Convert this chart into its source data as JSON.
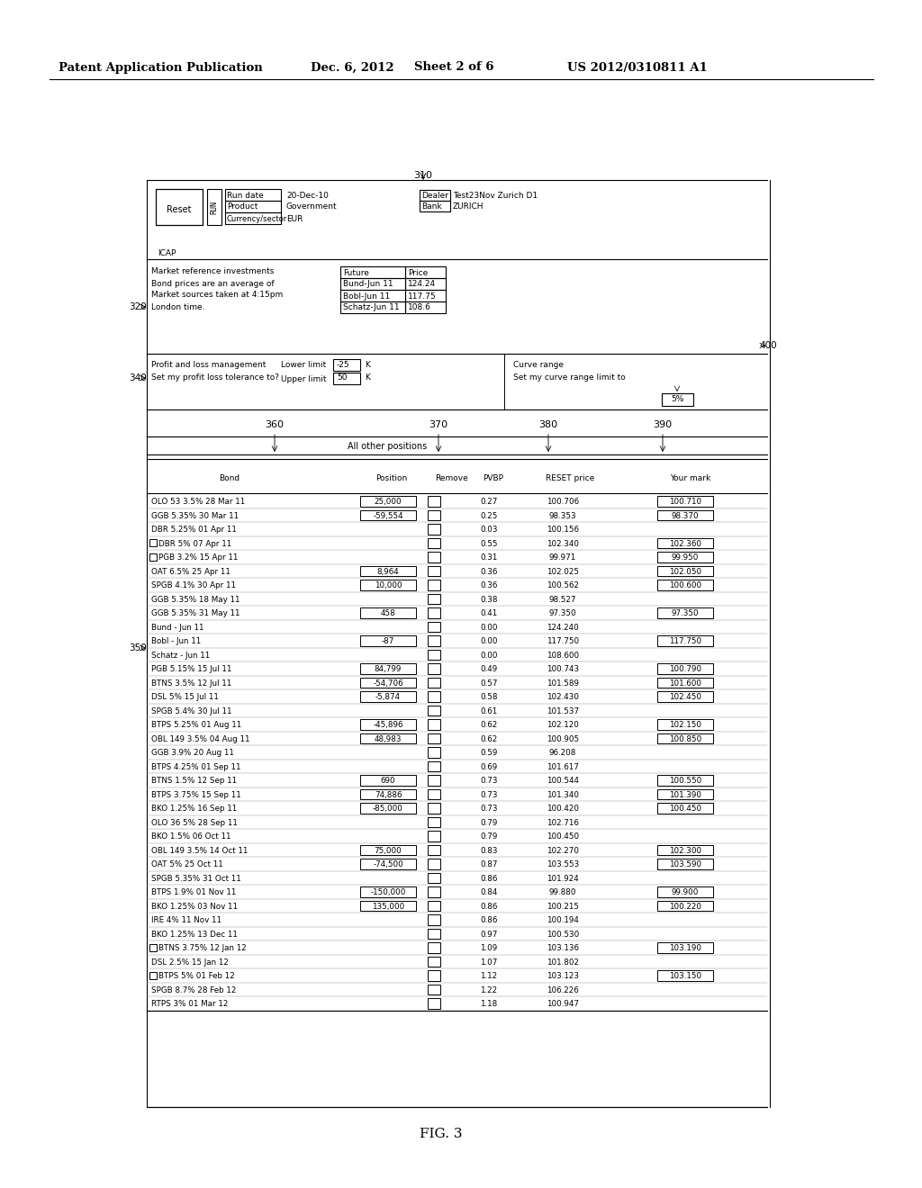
{
  "header_text": "Patent Application Publication",
  "header_date": "Dec. 6, 2012",
  "header_sheet": "Sheet 2 of 6",
  "header_patent": "US 2012/0310811 A1",
  "bonds": [
    [
      "OLO 53 3.5% 28 Mar 11",
      "25,000",
      "0.27",
      "100.706",
      "100.710"
    ],
    [
      "GGB 5.35% 30 Mar 11",
      "-59,554",
      "0.25",
      "98.353",
      "98.370"
    ],
    [
      "DBR 5.25% 01 Apr 11",
      "",
      "0.03",
      "100.156",
      ""
    ],
    [
      "DBR 5% 07 Apr 11",
      "",
      "0.55",
      "102.340",
      "102.360"
    ],
    [
      "PGB 3.2% 15 Apr 11",
      "",
      "0.31",
      "99.971",
      "99.950"
    ],
    [
      "OAT 6.5% 25 Apr 11",
      "8,964",
      "0.36",
      "102.025",
      "102.050"
    ],
    [
      "SPGB 4.1% 30 Apr 11",
      "10,000",
      "0.36",
      "100.562",
      "100.600"
    ],
    [
      "GGB 5.35% 18 May 11",
      "",
      "0.38",
      "98.527",
      ""
    ],
    [
      "GGB 5.35% 31 May 11",
      "458",
      "0.41",
      "97.350",
      "97.350"
    ],
    [
      "Bund - Jun 11",
      "",
      "0.00",
      "124.240",
      ""
    ],
    [
      "Bobl - Jun 11",
      "-87",
      "0.00",
      "117.750",
      "117.750"
    ],
    [
      "Schatz - Jun 11",
      "",
      "0.00",
      "108.600",
      ""
    ],
    [
      "PGB 5.15% 15 Jul 11",
      "84,799",
      "0.49",
      "100.743",
      "100.790"
    ],
    [
      "BTNS 3.5% 12 Jul 11",
      "-54,706",
      "0.57",
      "101.589",
      "101.600"
    ],
    [
      "DSL 5% 15 Jul 11",
      "-5,874",
      "0.58",
      "102.430",
      "102.450"
    ],
    [
      "SPGB 5.4% 30 Jul 11",
      "",
      "0.61",
      "101.537",
      ""
    ],
    [
      "BTPS 5.25% 01 Aug 11",
      "-45,896",
      "0.62",
      "102.120",
      "102.150"
    ],
    [
      "OBL 149 3.5% 04 Aug 11",
      "48,983",
      "0.62",
      "100.905",
      "100.850"
    ],
    [
      "GGB 3.9% 20 Aug 11",
      "",
      "0.59",
      "96.208",
      ""
    ],
    [
      "BTPS 4.25% 01 Sep 11",
      "",
      "0.69",
      "101.617",
      ""
    ],
    [
      "BTNS 1.5% 12 Sep 11",
      "690",
      "0.73",
      "100.544",
      "100.550"
    ],
    [
      "BTPS 3.75% 15 Sep 11",
      "74,886",
      "0.73",
      "101.340",
      "101.390"
    ],
    [
      "BKO 1.25% 16 Sep 11",
      "-85,000",
      "0.73",
      "100.420",
      "100.450"
    ],
    [
      "OLO 36 5% 28 Sep 11",
      "",
      "0.79",
      "102.716",
      ""
    ],
    [
      "BKO 1.5% 06 Oct 11",
      "",
      "0.79",
      "100.450",
      ""
    ],
    [
      "OBL 149 3.5% 14 Oct 11",
      "75,000",
      "0.83",
      "102.270",
      "102.300"
    ],
    [
      "OAT 5% 25 Oct 11",
      "-74,500",
      "0.87",
      "103.553",
      "103.590"
    ],
    [
      "SPGB 5.35% 31 Oct 11",
      "",
      "0.86",
      "101.924",
      ""
    ],
    [
      "BTPS 1.9% 01 Nov 11",
      "-150,000",
      "0.84",
      "99.880",
      "99.900"
    ],
    [
      "BKO 1.25% 03 Nov 11",
      "135,000",
      "0.86",
      "100.215",
      "100.220"
    ],
    [
      "IRE 4% 11 Nov 11",
      "",
      "0.86",
      "100.194",
      ""
    ],
    [
      "BKO 1.25% 13 Dec 11",
      "",
      "0.97",
      "100.530",
      ""
    ],
    [
      "BTNS 3.75% 12 Jan 12",
      "",
      "1.09",
      "103.136",
      "103.190"
    ],
    [
      "DSL 2.5% 15 Jan 12",
      "",
      "1.07",
      "101.802",
      ""
    ],
    [
      "BTPS 5% 01 Feb 12",
      "",
      "1.12",
      "103.123",
      "103.150"
    ],
    [
      "SPGB 8.7% 28 Feb 12",
      "",
      "1.22",
      "106.226",
      ""
    ],
    [
      "RTPS 3% 01 Mar 12",
      "",
      "1.18",
      "100.947",
      ""
    ]
  ],
  "checkbox_rows": [
    3,
    4,
    32,
    34
  ]
}
